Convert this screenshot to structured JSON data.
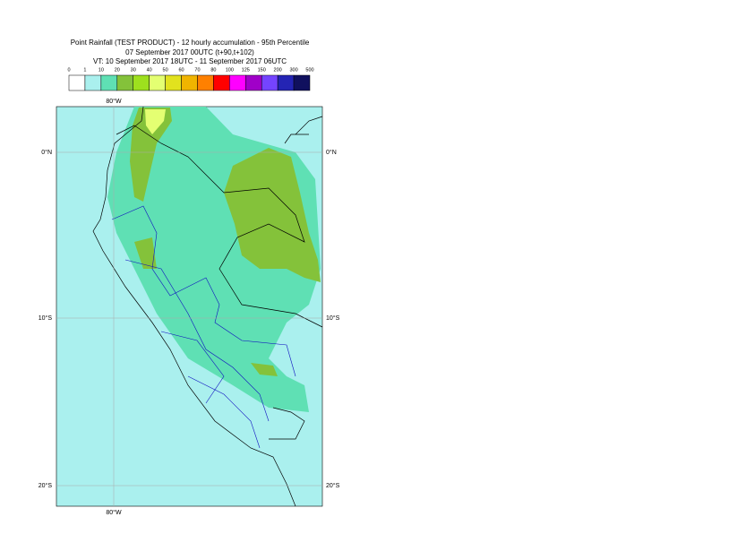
{
  "header": {
    "title": "Point Rainfall (TEST PRODUCT) - 12 hourly accumulation - 95th Percentile",
    "run": "07 September 2017 00UTC (t+90,t+102)",
    "valid": "VT: 10 September 2017 18UTC - 11 September 2017 06UTC"
  },
  "legend": {
    "ticks": [
      0,
      1,
      10,
      20,
      30,
      40,
      50,
      60,
      70,
      80,
      100,
      125,
      150,
      200,
      300,
      500
    ],
    "colors": [
      "#ffffff",
      "#aaf0ee",
      "#5fe0b4",
      "#84c23a",
      "#9ee01e",
      "#e4ff72",
      "#e2e21e",
      "#f0b400",
      "#ff8000",
      "#ff0000",
      "#ff00ff",
      "#a000c8",
      "#7444ff",
      "#2424b4",
      "#10105e"
    ]
  },
  "map": {
    "lon_labels": [
      "80°W",
      "80°W"
    ],
    "lat_labels": [
      "0°N",
      "10°S",
      "20°S",
      "0°N",
      "10°S",
      "20°S"
    ]
  }
}
